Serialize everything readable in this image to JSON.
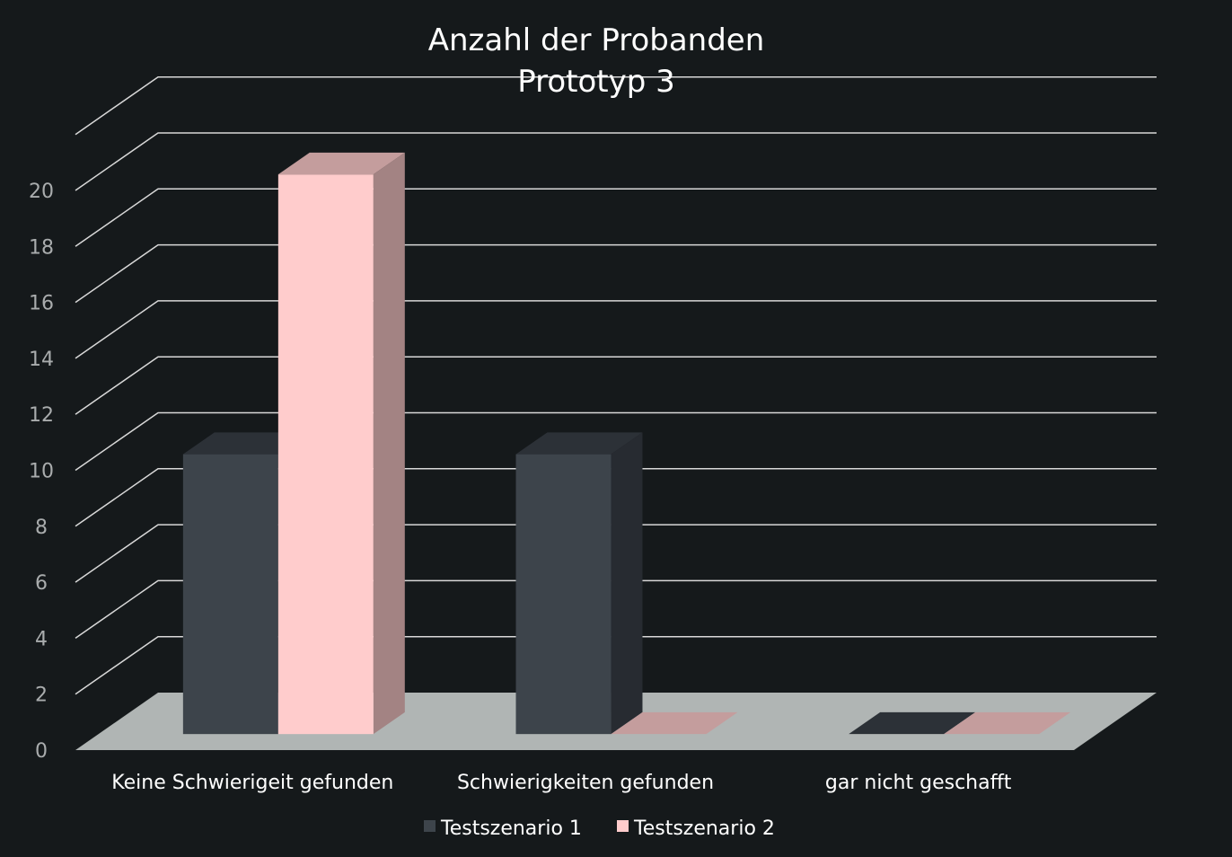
{
  "chart_data": {
    "type": "bar",
    "title_lines": [
      "Anzahl der Probanden",
      "Prototyp 3"
    ],
    "categories": [
      "Keine Schwierigeit gefunden",
      "Schwierigkeiten  gefunden",
      "gar nicht geschafft"
    ],
    "series": [
      {
        "name": "Testszenario 1",
        "values": [
          10,
          10,
          0
        ],
        "front_color": "#3d444b",
        "side_color": "#272b31",
        "top_color": "#2c3137"
      },
      {
        "name": "Testszenario 2",
        "values": [
          20,
          0,
          0
        ],
        "front_color": "#ffcccc",
        "side_color": "#a38383",
        "top_color": "#c49d9d"
      }
    ],
    "ylim": [
      0,
      20
    ],
    "yticks": [
      "0",
      "2",
      "4",
      "6",
      "8",
      "10",
      "12",
      "14",
      "16",
      "18",
      "20"
    ],
    "grid": true,
    "legend_position": "bottom",
    "three_d": true,
    "colors": {
      "background": "#15191b",
      "gridline": "#d8d8d8",
      "floor": "#b0b5b4",
      "tick_text": "#a9acad",
      "text": "#ffffff"
    }
  }
}
